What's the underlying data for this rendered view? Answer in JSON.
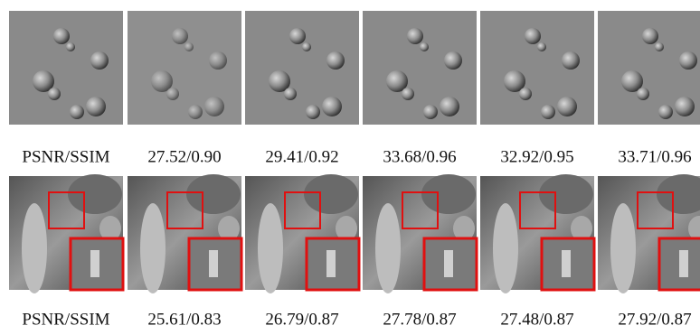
{
  "rows": [
    {
      "metrics": [
        "PSNR/SSIM",
        "27.52/0.90",
        "29.41/0.92",
        "33.68/0.96",
        "32.92/0.95",
        "33.71/0.96"
      ]
    },
    {
      "metrics": [
        "PSNR/SSIM",
        "25.61/0.83",
        "26.79/0.87",
        "27.78/0.87",
        "27.48/0.87",
        "27.92/0.87"
      ]
    }
  ]
}
